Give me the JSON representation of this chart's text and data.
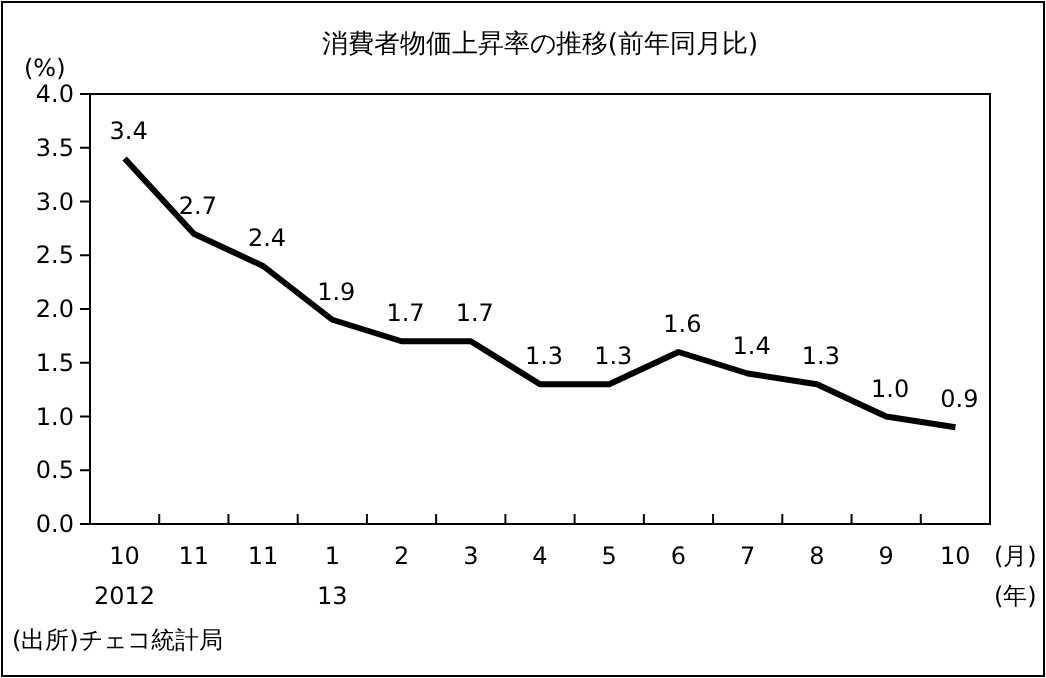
{
  "chart_data": {
    "type": "line",
    "title": "消費者物価上昇率の推移(前年同月比)",
    "ylabel": "(%)",
    "categories": [
      "10",
      "11",
      "11",
      "1",
      "2",
      "3",
      "4",
      "5",
      "6",
      "7",
      "8",
      "9",
      "10"
    ],
    "series": [
      {
        "color": "#000000",
        "values": [
          3.4,
          2.7,
          2.4,
          1.9,
          1.7,
          1.7,
          1.3,
          1.3,
          1.6,
          1.4,
          1.3,
          1.0,
          0.9
        ],
        "value_labels": [
          "3.4",
          "2.7",
          "2.4",
          "1.9",
          "1.7",
          "1.7",
          "1.3",
          "1.3",
          "1.6",
          "1.4",
          "1.3",
          "1.0",
          "0.9"
        ]
      }
    ],
    "ylim": [
      0,
      4
    ],
    "yticks": [
      {
        "value": 0,
        "label": "0.0"
      },
      {
        "value": 0.5,
        "label": "0.5"
      },
      {
        "value": 1,
        "label": "1.0"
      },
      {
        "value": 1.5,
        "label": "1.5"
      },
      {
        "value": 2,
        "label": "2.0"
      },
      {
        "value": 2.5,
        "label": "2.5"
      },
      {
        "value": 3,
        "label": "3.0"
      },
      {
        "value": 3.5,
        "label": "3.5"
      },
      {
        "value": 4,
        "label": "4.0"
      }
    ],
    "xlabel": "(月)",
    "annotations": [
      "2012",
      "13",
      "(年)",
      "(出所)チェコ統計局"
    ],
    "grid": false,
    "marker": "none",
    "line_style": "solid"
  }
}
